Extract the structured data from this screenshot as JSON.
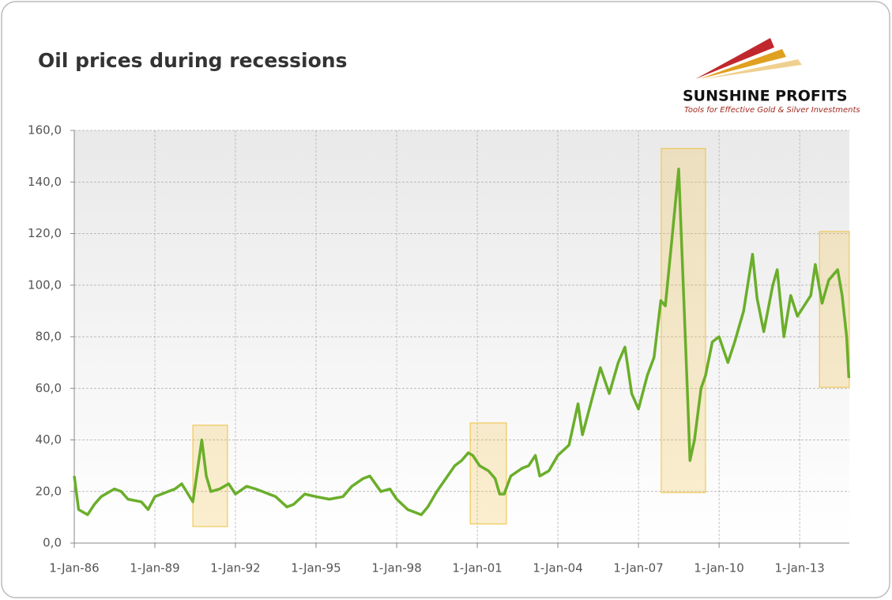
{
  "chart_data": {
    "type": "line",
    "title": "Oil prices during recessions",
    "logo": {
      "name": "SUNSHINE PROFITS",
      "tagline": "Tools for Effective Gold & Silver Investments"
    },
    "x": [
      "1986-01-01",
      "1986-03-01",
      "1986-07-01",
      "1986-10-01",
      "1987-01-01",
      "1987-07-01",
      "1987-10-01",
      "1988-01-01",
      "1988-07-01",
      "1988-10-01",
      "1989-01-01",
      "1989-07-01",
      "1989-10-01",
      "1990-01-01",
      "1990-06-01",
      "1990-08-01",
      "1990-10-01",
      "1990-12-01",
      "1991-02-01",
      "1991-06-01",
      "1991-10-01",
      "1992-01-01",
      "1992-06-01",
      "1992-10-01",
      "1993-01-01",
      "1993-07-01",
      "1993-12-01",
      "1994-03-01",
      "1994-08-01",
      "1995-01-01",
      "1995-07-01",
      "1996-01-01",
      "1996-05-01",
      "1996-10-01",
      "1997-01-01",
      "1997-06-01",
      "1997-10-01",
      "1998-01-01",
      "1998-06-01",
      "1998-12-01",
      "1999-03-01",
      "1999-07-01",
      "1999-11-01",
      "2000-03-01",
      "2000-06-01",
      "2000-09-01",
      "2000-11-01",
      "2001-02-01",
      "2001-06-01",
      "2001-09-01",
      "2001-11-01",
      "2002-01-01",
      "2002-04-01",
      "2002-09-01",
      "2002-12-01",
      "2003-03-01",
      "2003-05-01",
      "2003-09-01",
      "2004-01-01",
      "2004-06-01",
      "2004-10-01",
      "2004-12-01",
      "2005-04-01",
      "2005-08-01",
      "2005-12-01",
      "2006-04-01",
      "2006-07-01",
      "2006-10-01",
      "2007-01-01",
      "2007-05-01",
      "2007-08-01",
      "2007-11-01",
      "2008-01-01",
      "2008-04-01",
      "2008-07-01",
      "2008-09-01",
      "2008-11-01",
      "2008-12-01",
      "2009-02-01",
      "2009-05-01",
      "2009-07-01",
      "2009-10-01",
      "2010-01-01",
      "2010-05-01",
      "2010-08-01",
      "2010-12-01",
      "2011-04-01",
      "2011-06-01",
      "2011-09-01",
      "2012-01-01",
      "2012-03-01",
      "2012-06-01",
      "2012-09-01",
      "2012-12-01",
      "2013-03-01",
      "2013-06-01",
      "2013-08-01",
      "2013-11-01",
      "2014-02-01",
      "2014-06-01",
      "2014-08-01",
      "2014-10-01",
      "2014-11-01"
    ],
    "series": [
      {
        "color": "#6aae2a",
        "values": [
          26,
          13,
          11,
          15,
          18,
          21,
          20,
          17,
          16,
          13,
          18,
          20,
          21,
          23,
          16,
          28,
          40,
          26,
          20,
          21,
          23,
          19,
          22,
          21,
          20,
          18,
          14,
          15,
          19,
          18,
          17,
          18,
          22,
          25,
          26,
          20,
          21,
          17,
          13,
          11,
          14,
          20,
          25,
          30,
          32,
          35,
          34,
          30,
          28,
          25,
          19,
          19,
          26,
          29,
          30,
          34,
          26,
          28,
          34,
          38,
          54,
          42,
          55,
          68,
          58,
          70,
          76,
          58,
          52,
          65,
          72,
          94,
          92,
          118,
          145,
          100,
          55,
          32,
          40,
          60,
          65,
          78,
          80,
          70,
          78,
          90,
          112,
          95,
          82,
          100,
          106,
          80,
          96,
          88,
          92,
          96,
          108,
          93,
          102,
          106,
          96,
          80,
          64
        ]
      }
    ],
    "recessions": [
      {
        "start": "1990-06-01",
        "end": "1991-09-15",
        "ymin": 6.4,
        "ymax": 45.7
      },
      {
        "start": "2000-09-27",
        "end": "2002-02-01",
        "ymin": 7.4,
        "ymax": 46.6
      },
      {
        "start": "2007-11-07",
        "end": "2009-07-01",
        "ymin": 19.6,
        "ymax": 153
      },
      {
        "start": "2013-09-27",
        "end": "2014-11-07",
        "ymin": 60.4,
        "ymax": 120.8
      }
    ],
    "recession_color": "#f0c040",
    "xlim": [
      "1986-01-01",
      "2014-11-07"
    ],
    "xticks": [
      {
        "value": "1986-01-01",
        "label": "1-Jan-86"
      },
      {
        "value": "1989-01-01",
        "label": "1-Jan-89"
      },
      {
        "value": "1992-01-01",
        "label": "1-Jan-92"
      },
      {
        "value": "1995-01-01",
        "label": "1-Jan-95"
      },
      {
        "value": "1998-01-01",
        "label": "1-Jan-98"
      },
      {
        "value": "2001-01-01",
        "label": "1-Jan-01"
      },
      {
        "value": "2004-01-01",
        "label": "1-Jan-04"
      },
      {
        "value": "2007-01-01",
        "label": "1-Jan-07"
      },
      {
        "value": "2010-01-01",
        "label": "1-Jan-10"
      },
      {
        "value": "2013-01-01",
        "label": "1-Jan-13"
      }
    ],
    "ylim": [
      0,
      160
    ],
    "yticks": [
      {
        "value": 0,
        "label": "0,0"
      },
      {
        "value": 20,
        "label": "20,0"
      },
      {
        "value": 40,
        "label": "40,0"
      },
      {
        "value": 60,
        "label": "60,0"
      },
      {
        "value": 80,
        "label": "80,0"
      },
      {
        "value": 100,
        "label": "100,0"
      },
      {
        "value": 120,
        "label": "120,0"
      },
      {
        "value": 140,
        "label": "140,0"
      },
      {
        "value": 160,
        "label": "160,0"
      }
    ],
    "grid": true
  }
}
